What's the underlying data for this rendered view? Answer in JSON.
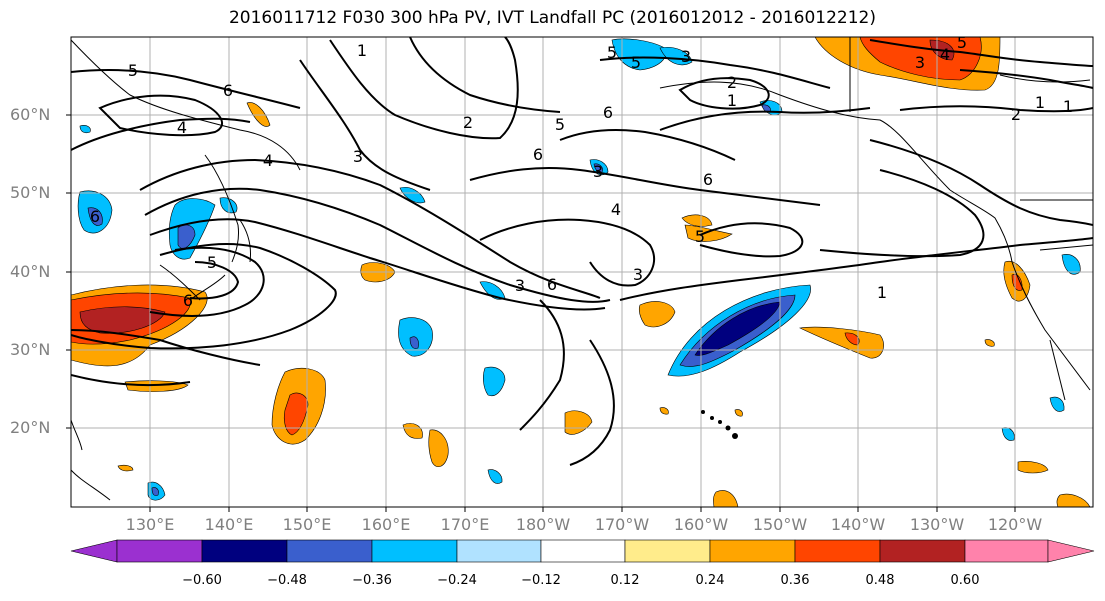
{
  "title": "2016011712 F030 300 hPa PV, IVT Landfall PC (2016012012 - 2016012212)",
  "lat_labels": [
    "60°N",
    "50°N",
    "40°N",
    "30°N",
    "20°N"
  ],
  "lon_labels": [
    "130°E",
    "140°E",
    "150°E",
    "160°E",
    "170°E",
    "180°W",
    "170°W",
    "160°W",
    "150°W",
    "140°W",
    "130°W",
    "120°W"
  ],
  "colorbar": {
    "tick_labels": [
      "−0.60",
      "−0.48",
      "−0.36",
      "−0.24",
      "−0.12",
      "0.12",
      "0.24",
      "0.36",
      "0.48",
      "0.60"
    ],
    "colors": [
      "#9b30d0",
      "#00007f",
      "#3a5fcd",
      "#00bfff",
      "#b0e2ff",
      "#ffffff",
      "#ffec8b",
      "#ffa500",
      "#ff4500",
      "#b22222",
      "#ff82ab"
    ]
  },
  "contour_labels": [
    "5",
    "4",
    "4",
    "6",
    "1",
    "2",
    "3",
    "5",
    "6",
    "6",
    "3",
    "4",
    "6",
    "5",
    "3",
    "2",
    "1",
    "5",
    "5",
    "4",
    "3",
    "2",
    "1",
    "1",
    "6",
    "6",
    "5",
    "3",
    "3",
    "6",
    "1",
    "5"
  ],
  "colors": {
    "map_outline": "#000000",
    "grid": "#b0b0b0",
    "tick_text": "#808080"
  }
}
